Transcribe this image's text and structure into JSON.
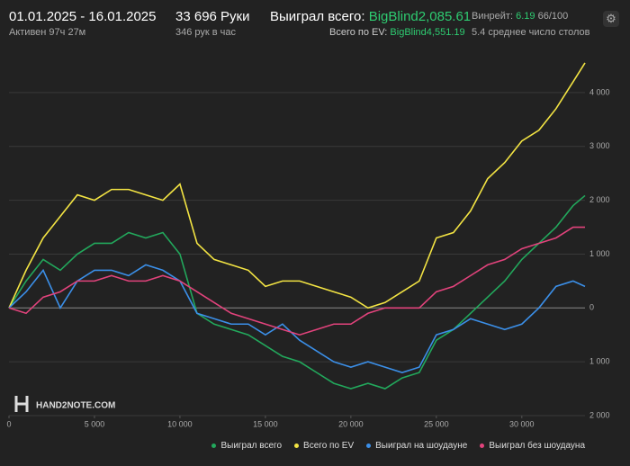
{
  "header": {
    "period": "01.01.2025 - 16.01.2025",
    "active": "Активен 97ч 27м",
    "hands": "33 696 Руки",
    "hands_per_hour": "346 рук в час",
    "won_label": "Выиграл всего:",
    "won_value": "BigBlind2,085.61",
    "ev_label": "Всего по EV:",
    "ev_value": "BigBlind4,551.19",
    "winrate_label": "Винрейт:",
    "winrate_value": "6.19",
    "winrate_unit": "66/100",
    "tables": "5.4 среднее число столов"
  },
  "watermark": "HAND2NOTE.COM",
  "chart_data": {
    "type": "line",
    "x": [
      0,
      1000,
      2000,
      3000,
      4000,
      5000,
      6000,
      7000,
      8000,
      9000,
      10000,
      11000,
      12000,
      13000,
      14000,
      15000,
      16000,
      17000,
      18000,
      19000,
      20000,
      21000,
      22000,
      23000,
      24000,
      25000,
      26000,
      27000,
      28000,
      29000,
      30000,
      31000,
      32000,
      33000,
      33696
    ],
    "series": [
      {
        "name": "Выиграл всего",
        "color": "#22a85c",
        "values": [
          0,
          500,
          900,
          700,
          1000,
          1200,
          1200,
          1400,
          1300,
          1400,
          1000,
          -100,
          -300,
          -400,
          -500,
          -700,
          -900,
          -1000,
          -1200,
          -1400,
          -1500,
          -1400,
          -1500,
          -1300,
          -1200,
          -600,
          -400,
          -100,
          200,
          500,
          900,
          1200,
          1500,
          1900,
          2086
        ]
      },
      {
        "name": "Всего по EV",
        "color": "#f3e443",
        "values": [
          0,
          700,
          1300,
          1700,
          2100,
          2000,
          2200,
          2200,
          2100,
          2000,
          2300,
          1200,
          900,
          800,
          700,
          400,
          500,
          500,
          400,
          300,
          200,
          0,
          100,
          300,
          500,
          1300,
          1400,
          1800,
          2400,
          2700,
          3100,
          3300,
          3700,
          4200,
          4551
        ]
      },
      {
        "name": "Выиграл на шоудауне",
        "color": "#3b8fe8",
        "values": [
          0,
          300,
          700,
          0,
          500,
          700,
          700,
          600,
          800,
          700,
          500,
          -100,
          -200,
          -300,
          -300,
          -500,
          -300,
          -600,
          -800,
          -1000,
          -1100,
          -1000,
          -1100,
          -1200,
          -1100,
          -500,
          -400,
          -200,
          -300,
          -400,
          -300,
          0,
          400,
          500,
          400
        ]
      },
      {
        "name": "Выиграл без шоудауна",
        "color": "#e2437c",
        "values": [
          0,
          -100,
          200,
          300,
          500,
          500,
          600,
          500,
          500,
          600,
          500,
          300,
          100,
          -100,
          -200,
          -300,
          -400,
          -500,
          -400,
          -300,
          -300,
          -100,
          0,
          0,
          0,
          300,
          400,
          600,
          800,
          900,
          1100,
          1200,
          1300,
          1500,
          1500
        ]
      }
    ],
    "xlim": [
      0,
      33696
    ],
    "ylim": [
      -2000,
      4800
    ],
    "xticks": [
      0,
      {
        "value": 5000,
        "label": "5 000"
      },
      {
        "value": 10000,
        "label": "10 000"
      },
      {
        "value": 15000,
        "label": "15 000"
      },
      {
        "value": 20000,
        "label": "20 000"
      },
      {
        "value": 25000,
        "label": "25 000"
      },
      {
        "value": 30000,
        "label": "30 000"
      }
    ],
    "yticks": [
      {
        "value": -2000,
        "label": "2 000"
      },
      {
        "value": -1000,
        "label": "1 000"
      },
      0,
      {
        "value": 1000,
        "label": "1 000"
      },
      {
        "value": 2000,
        "label": "2 000"
      },
      {
        "value": 3000,
        "label": "3 000"
      },
      {
        "value": 4000,
        "label": "4 000"
      }
    ],
    "grid": true
  }
}
